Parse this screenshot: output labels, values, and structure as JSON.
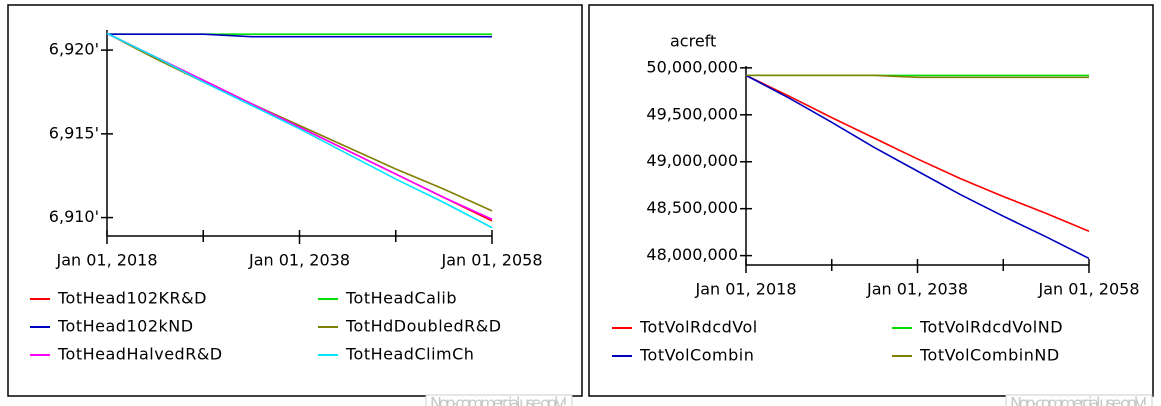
{
  "chart_data": [
    {
      "type": "line",
      "x": [
        2018,
        2023,
        2028,
        2033,
        2038,
        2043,
        2048,
        2053,
        2058
      ],
      "xlim": [
        2018,
        2058
      ],
      "xticks": [
        {
          "value": 2018,
          "label": "Jan 01, 2018"
        },
        {
          "value": 2038,
          "label": "Jan 01, 2038"
        },
        {
          "value": 2058,
          "label": "Jan 01, 2058"
        }
      ],
      "minor_xticks": [
        2028,
        2048
      ],
      "ylim": [
        6908.9,
        6921.2
      ],
      "yticks": [
        {
          "value": 6920,
          "label": "6,920'"
        },
        {
          "value": 6915,
          "label": "6,915'"
        },
        {
          "value": 6910,
          "label": "6,910'"
        }
      ],
      "series": [
        {
          "name": "TotHead102KR&D",
          "color": "#ff0000",
          "values": [
            6921,
            6919.6,
            6918.2,
            6916.8,
            6915.4,
            6914.0,
            6912.6,
            6911.2,
            6909.8
          ]
        },
        {
          "name": "TotHeadCalib",
          "color": "#00e000",
          "values": [
            6920.95,
            6920.95,
            6920.95,
            6920.95,
            6920.95,
            6920.95,
            6920.95,
            6920.95,
            6920.95
          ]
        },
        {
          "name": "TotHead102kND",
          "color": "#0000c0",
          "values": [
            6920.95,
            6920.95,
            6920.95,
            6920.8,
            6920.8,
            6920.8,
            6920.8,
            6920.8,
            6920.8
          ]
        },
        {
          "name": "TotHdDoubledR&D",
          "color": "#808000",
          "values": [
            6921,
            6919.5,
            6918.1,
            6916.8,
            6915.5,
            6914.2,
            6912.9,
            6911.7,
            6910.4
          ]
        },
        {
          "name": "TotHeadHalvedR&D",
          "color": "#ff00ff",
          "values": [
            6921,
            6919.6,
            6918.2,
            6916.8,
            6915.4,
            6914.0,
            6912.6,
            6911.2,
            6909.9
          ]
        },
        {
          "name": "TotHeadClimCh",
          "color": "#00e5ff",
          "values": [
            6921,
            6919.6,
            6918.1,
            6916.7,
            6915.3,
            6913.8,
            6912.3,
            6910.9,
            6909.4
          ]
        }
      ],
      "watermark": "Non-commercial use only!"
    },
    {
      "type": "line",
      "ylabel": "acreft",
      "x": [
        2018,
        2023,
        2028,
        2033,
        2038,
        2043,
        2048,
        2053,
        2058
      ],
      "xlim": [
        2018,
        2058
      ],
      "xticks": [
        {
          "value": 2018,
          "label": "Jan 01, 2018"
        },
        {
          "value": 2038,
          "label": "Jan 01, 2038"
        },
        {
          "value": 2058,
          "label": "Jan 01, 2058"
        }
      ],
      "minor_xticks": [
        2028,
        2048
      ],
      "ylim": [
        47900000,
        50020000
      ],
      "yticks": [
        {
          "value": 50000000,
          "label": "50,000,000"
        },
        {
          "value": 49500000,
          "label": "49,500,000"
        },
        {
          "value": 49000000,
          "label": "49,000,000"
        },
        {
          "value": 48500000,
          "label": "48,500,000"
        },
        {
          "value": 48000000,
          "label": "48,000,000"
        }
      ],
      "series": [
        {
          "name": "TotVolRdcdVol",
          "color": "#ff0000",
          "values": [
            49920000,
            49700000,
            49470000,
            49250000,
            49030000,
            48820000,
            48630000,
            48450000,
            48260000
          ]
        },
        {
          "name": "TotVolRdcdVolND",
          "color": "#00e000",
          "values": [
            49920000,
            49920000,
            49920000,
            49920000,
            49920000,
            49920000,
            49920000,
            49920000,
            49920000
          ]
        },
        {
          "name": "TotVolCombin",
          "color": "#0000c0",
          "values": [
            49920000,
            49680000,
            49420000,
            49150000,
            48900000,
            48650000,
            48420000,
            48200000,
            47970000
          ]
        },
        {
          "name": "TotVolCombinND",
          "color": "#808000",
          "values": [
            49920000,
            49920000,
            49920000,
            49920000,
            49900000,
            49900000,
            49900000,
            49900000,
            49900000
          ]
        }
      ],
      "watermark": "Non-commercial use only!"
    }
  ]
}
